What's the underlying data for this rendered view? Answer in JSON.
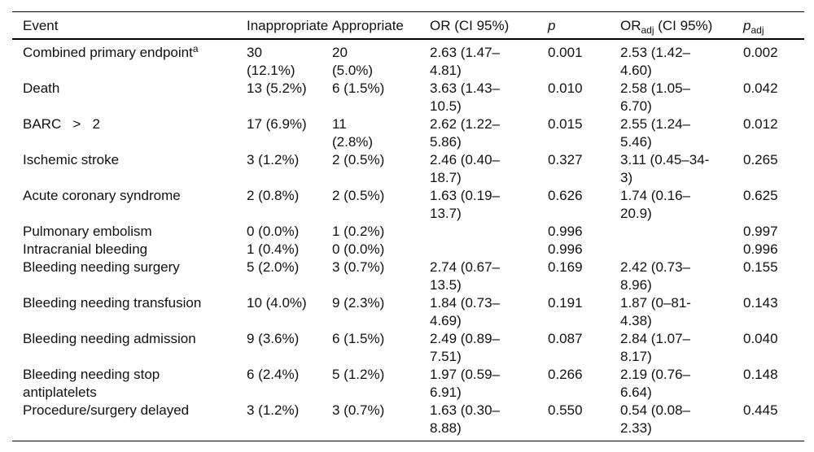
{
  "table": {
    "columns": [
      {
        "text": "Event"
      },
      {
        "text": "Inappropriate"
      },
      {
        "text": "Appropriate"
      },
      {
        "text": "OR (CI 95%)"
      },
      {
        "text": "p",
        "italic": true
      },
      {
        "text": "OR",
        "sub": "adj",
        "after": " (CI 95%)"
      },
      {
        "text": "p",
        "sub": "adj",
        "italic": true
      }
    ],
    "rows": [
      {
        "event": "Combined primary endpoint",
        "event_sup": "a",
        "inappropriate": "30\n(12.1%)",
        "appropriate": "20\n(5.0%)",
        "or_ci": "2.63 (1.47–\n4.81)",
        "p": "0.001",
        "or_adj_ci": "2.53 (1.42–\n4.60)",
        "p_adj": "0.002"
      },
      {
        "event": "Death",
        "inappropriate": "13 (5.2%)",
        "appropriate": "6 (1.5%)",
        "or_ci": "3.63 (1.43–\n10.5)",
        "p": "0.010",
        "or_adj_ci": "2.58 (1.05–\n6.70)",
        "p_adj": "0.042"
      },
      {
        "event": "BARC   >   2",
        "inappropriate": "17 (6.9%)",
        "appropriate": "11\n(2.8%)",
        "or_ci": "2.62 (1.22–\n5.86)",
        "p": "0.015",
        "or_adj_ci": "2.55 (1.24–\n5.46)",
        "p_adj": "0.012"
      },
      {
        "event": "Ischemic stroke",
        "inappropriate": "3 (1.2%)",
        "appropriate": "2 (0.5%)",
        "or_ci": "2.46 (0.40–\n18.7)",
        "p": "0.327",
        "or_adj_ci": "3.11 (0.45–34-\n3)",
        "p_adj": "0.265"
      },
      {
        "event": "Acute coronary syndrome",
        "inappropriate": "2 (0.8%)",
        "appropriate": "2 (0.5%)",
        "or_ci": "1.63 (0.19–\n13.7)",
        "p": "0.626",
        "or_adj_ci": "1.74 (0.16–\n20.9)",
        "p_adj": "0.625"
      },
      {
        "event": "Pulmonary embolism",
        "inappropriate": "0 (0.0%)",
        "appropriate": "1 (0.2%)",
        "or_ci": "",
        "p": "0.996",
        "or_adj_ci": "",
        "p_adj": "0.997"
      },
      {
        "event": "Intracranial bleeding",
        "inappropriate": "1 (0.4%)",
        "appropriate": "0 (0.0%)",
        "or_ci": "",
        "p": "0.996",
        "or_adj_ci": "",
        "p_adj": "0.996"
      },
      {
        "event": "Bleeding needing surgery",
        "inappropriate": "5 (2.0%)",
        "appropriate": "3 (0.7%)",
        "or_ci": "2.74 (0.67–\n13.5)",
        "p": "0.169",
        "or_adj_ci": "2.42 (0.73–\n8.96)",
        "p_adj": "0.155"
      },
      {
        "event": "Bleeding needing transfusion",
        "inappropriate": "10 (4.0%)",
        "appropriate": "9 (2.3%)",
        "or_ci": "1.84 (0.73–\n4.69)",
        "p": "0.191",
        "or_adj_ci": "1.87 (0–81-\n4.38)",
        "p_adj": "0.143"
      },
      {
        "event": "Bleeding needing admission",
        "inappropriate": "9 (3.6%)",
        "appropriate": "6 (1.5%)",
        "or_ci": "2.49 (0.89–\n7.51)",
        "p": "0.087",
        "or_adj_ci": "2.84 (1.07–\n8.17)",
        "p_adj": "0.040"
      },
      {
        "event": "Bleeding needing stop\nantiplatelets",
        "inappropriate": "6 (2.4%)",
        "appropriate": "5 (1.2%)",
        "or_ci": "1.97 (0.59–\n6.91)",
        "p": "0.266",
        "or_adj_ci": "2.19 (0.76–\n6.64)",
        "p_adj": "0.148"
      },
      {
        "event": "Procedure/surgery delayed",
        "inappropriate": "3 (1.2%)",
        "appropriate": "3 (0.7%)",
        "or_ci": "1.63 (0.30–\n8.88)",
        "p": "0.550",
        "or_adj_ci": "0.54 (0.08–\n2.33)",
        "p_adj": "0.445"
      }
    ]
  }
}
